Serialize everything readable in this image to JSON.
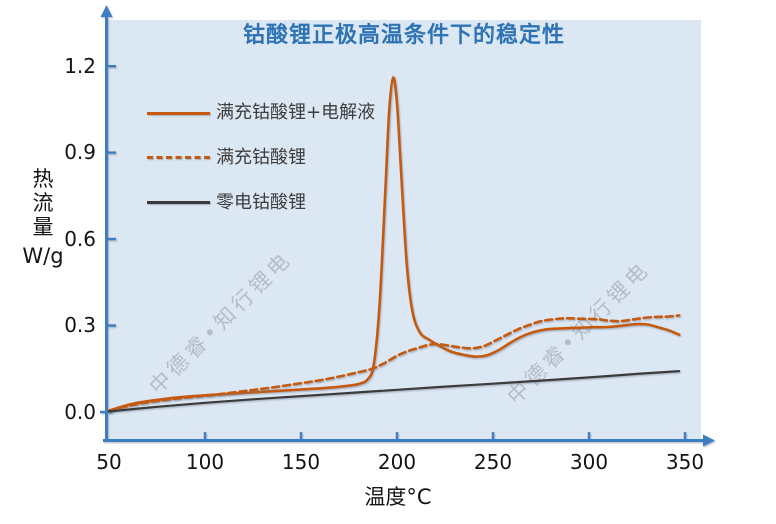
{
  "title": "钴酸锂正极高温条件下的稳定性",
  "watermark": {
    "text": "中德睿•知行锂电"
  },
  "colors": {
    "title_blue": "#2e74b5",
    "axis_blue": "#3d7dc2",
    "series_orange": "#c55a11",
    "series_dark": "#3b3b3b",
    "plot_background": "#dce7f4",
    "watermark_gray": "#9aa1a9"
  },
  "y_axis": {
    "label": "热流量",
    "unit": "W/g",
    "tick_labels": [
      "0.0",
      "0.3",
      "0.6",
      "0.9",
      "1.2"
    ]
  },
  "x_axis": {
    "label": "温度°C",
    "tick_labels": [
      "50",
      "100",
      "150",
      "200",
      "250",
      "300",
      "350"
    ]
  },
  "legend": {
    "items": [
      {
        "label": "满充钴酸锂+电解液",
        "style": "solid",
        "color": "#c55a11"
      },
      {
        "label": "满充钴酸锂",
        "style": "dashed",
        "color": "#c55a11"
      },
      {
        "label": "零电钴酸锂",
        "style": "solid",
        "color": "#3b3b3b"
      }
    ]
  },
  "chart_data": {
    "type": "line",
    "title": "钴酸锂正极高温条件下的稳定性",
    "xlabel": "温度°C",
    "ylabel": "热流量 W/g",
    "xlim": [
      50,
      360
    ],
    "ylim": [
      -0.09,
      1.36
    ],
    "x_ticks": [
      50,
      100,
      150,
      200,
      250,
      300,
      350
    ],
    "y_ticks": [
      0.0,
      0.3,
      0.6,
      0.9,
      1.2
    ],
    "grid": false,
    "legend_position": "upper-left-inside",
    "series": [
      {
        "name": "满充钴酸锂+电解液",
        "id": "full-charged-licoo2-with-electrolyte",
        "color": "#c55a11",
        "line_style": "solid",
        "peak": {
          "x": 198,
          "y": 1.16
        },
        "points": [
          [
            50,
            0.005
          ],
          [
            62,
            0.028
          ],
          [
            75,
            0.042
          ],
          [
            90,
            0.053
          ],
          [
            105,
            0.06
          ],
          [
            120,
            0.066
          ],
          [
            135,
            0.072
          ],
          [
            150,
            0.078
          ],
          [
            162,
            0.083
          ],
          [
            172,
            0.089
          ],
          [
            180,
            0.097
          ],
          [
            185,
            0.115
          ],
          [
            188,
            0.17
          ],
          [
            191,
            0.38
          ],
          [
            194,
            0.78
          ],
          [
            196,
            1.05
          ],
          [
            198,
            1.16
          ],
          [
            200,
            1.07
          ],
          [
            202,
            0.85
          ],
          [
            205,
            0.52
          ],
          [
            208,
            0.35
          ],
          [
            212,
            0.275
          ],
          [
            217,
            0.25
          ],
          [
            222,
            0.23
          ],
          [
            228,
            0.21
          ],
          [
            235,
            0.198
          ],
          [
            241,
            0.192
          ],
          [
            247,
            0.197
          ],
          [
            253,
            0.215
          ],
          [
            259,
            0.24
          ],
          [
            265,
            0.262
          ],
          [
            271,
            0.277
          ],
          [
            278,
            0.287
          ],
          [
            286,
            0.29
          ],
          [
            294,
            0.292
          ],
          [
            302,
            0.294
          ],
          [
            310,
            0.295
          ],
          [
            318,
            0.3
          ],
          [
            325,
            0.305
          ],
          [
            331,
            0.303
          ],
          [
            337,
            0.292
          ],
          [
            342,
            0.282
          ],
          [
            347,
            0.268
          ]
        ]
      },
      {
        "name": "满充钴酸锂",
        "id": "full-charged-licoo2",
        "color": "#c55a11",
        "line_style": "dashed",
        "points": [
          [
            50,
            0.004
          ],
          [
            62,
            0.024
          ],
          [
            75,
            0.038
          ],
          [
            90,
            0.05
          ],
          [
            105,
            0.06
          ],
          [
            120,
            0.072
          ],
          [
            135,
            0.085
          ],
          [
            150,
            0.1
          ],
          [
            160,
            0.11
          ],
          [
            170,
            0.123
          ],
          [
            180,
            0.138
          ],
          [
            187,
            0.15
          ],
          [
            193,
            0.168
          ],
          [
            200,
            0.195
          ],
          [
            206,
            0.212
          ],
          [
            211,
            0.222
          ],
          [
            216,
            0.232
          ],
          [
            221,
            0.236
          ],
          [
            227,
            0.23
          ],
          [
            233,
            0.224
          ],
          [
            239,
            0.221
          ],
          [
            245,
            0.228
          ],
          [
            251,
            0.247
          ],
          [
            257,
            0.267
          ],
          [
            263,
            0.287
          ],
          [
            269,
            0.302
          ],
          [
            275,
            0.315
          ],
          [
            282,
            0.322
          ],
          [
            289,
            0.325
          ],
          [
            297,
            0.323
          ],
          [
            304,
            0.322
          ],
          [
            310,
            0.317
          ],
          [
            316,
            0.315
          ],
          [
            322,
            0.32
          ],
          [
            328,
            0.326
          ],
          [
            335,
            0.33
          ],
          [
            341,
            0.331
          ],
          [
            347,
            0.335
          ]
        ]
      },
      {
        "name": "零电钴酸锂",
        "id": "zero-charge-licoo2",
        "color": "#3b3b3b",
        "line_style": "solid",
        "points": [
          [
            50,
            0.002
          ],
          [
            75,
            0.018
          ],
          [
            100,
            0.032
          ],
          [
            125,
            0.044
          ],
          [
            150,
            0.055
          ],
          [
            175,
            0.066
          ],
          [
            200,
            0.077
          ],
          [
            225,
            0.088
          ],
          [
            250,
            0.098
          ],
          [
            275,
            0.109
          ],
          [
            300,
            0.12
          ],
          [
            325,
            0.132
          ],
          [
            347,
            0.142
          ]
        ]
      }
    ]
  }
}
